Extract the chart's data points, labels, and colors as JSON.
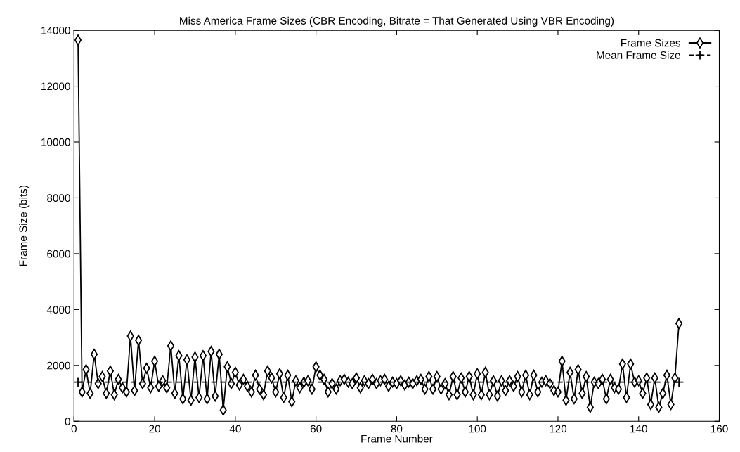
{
  "chart_data": {
    "type": "line",
    "title": "Miss America Frame Sizes (CBR Encoding, Bitrate = That Generated Using VBR Encoding)",
    "xlabel": "Frame Number",
    "ylabel": "Frame Size (bits)",
    "x": [
      1,
      2,
      3,
      4,
      5,
      6,
      7,
      8,
      9,
      10,
      11,
      12,
      13,
      14,
      15,
      16,
      17,
      18,
      19,
      20,
      21,
      22,
      23,
      24,
      25,
      26,
      27,
      28,
      29,
      30,
      31,
      32,
      33,
      34,
      35,
      36,
      37,
      38,
      39,
      40,
      41,
      42,
      43,
      44,
      45,
      46,
      47,
      48,
      49,
      50,
      51,
      52,
      53,
      54,
      55,
      56,
      57,
      58,
      59,
      60,
      61,
      62,
      63,
      64,
      65,
      66,
      67,
      68,
      69,
      70,
      71,
      72,
      73,
      74,
      75,
      76,
      77,
      78,
      79,
      80,
      81,
      82,
      83,
      84,
      85,
      86,
      87,
      88,
      89,
      90,
      91,
      92,
      93,
      94,
      95,
      96,
      97,
      98,
      99,
      100,
      101,
      102,
      103,
      104,
      105,
      106,
      107,
      108,
      109,
      110,
      111,
      112,
      113,
      114,
      115,
      116,
      117,
      118,
      119,
      120,
      121,
      122,
      123,
      124,
      125,
      126,
      127,
      128,
      129,
      130,
      131,
      132,
      133,
      134,
      135,
      136,
      137,
      138,
      139,
      140,
      141,
      142,
      143,
      144,
      145,
      146,
      147,
      148,
      149,
      150
    ],
    "series": [
      {
        "name": "Frame Sizes",
        "color": "#000000",
        "marker": "diamond",
        "line_style": "solid",
        "values": [
          13650,
          1050,
          1850,
          1000,
          2400,
          1350,
          1600,
          1000,
          1800,
          950,
          1500,
          1200,
          1050,
          3050,
          1100,
          2900,
          1350,
          1900,
          1200,
          2150,
          1250,
          1450,
          1200,
          2700,
          1000,
          2350,
          800,
          2200,
          750,
          2300,
          850,
          2350,
          800,
          2500,
          900,
          2400,
          400,
          1950,
          1350,
          1750,
          1300,
          1500,
          1250,
          1050,
          1650,
          1150,
          950,
          1800,
          1550,
          1050,
          1700,
          850,
          1650,
          700,
          1450,
          1200,
          1400,
          1450,
          1150,
          1950,
          1650,
          1500,
          1050,
          1350,
          1150,
          1450,
          1500,
          1400,
          1350,
          1550,
          1200,
          1450,
          1350,
          1500,
          1350,
          1450,
          1500,
          1250,
          1400,
          1350,
          1450,
          1300,
          1400,
          1350,
          1450,
          1500,
          1150,
          1600,
          1150,
          1600,
          1150,
          1350,
          950,
          1600,
          950,
          1550,
          1050,
          1600,
          950,
          1700,
          950,
          1750,
          950,
          1450,
          900,
          1450,
          1100,
          1450,
          1250,
          1600,
          1050,
          1650,
          950,
          1650,
          1050,
          1400,
          1450,
          1350,
          1100,
          1050,
          2150,
          750,
          1750,
          800,
          1850,
          1000,
          1600,
          500,
          1400,
          1350,
          1500,
          800,
          1500,
          1200,
          1150,
          2050,
          850,
          2050,
          1400,
          1450,
          1000,
          1550,
          600,
          1550,
          500,
          1000,
          1650,
          600,
          1550,
          3500
        ]
      },
      {
        "name": "Mean Frame Size",
        "color": "#000000",
        "marker": "cross",
        "line_style": "dashed",
        "x": [
          1,
          150
        ],
        "values": [
          1400,
          1400
        ]
      }
    ],
    "xlim": [
      0,
      160
    ],
    "xticks": [
      0,
      20,
      40,
      60,
      80,
      100,
      120,
      140,
      160
    ],
    "ylim": [
      0,
      14000
    ],
    "yticks": [
      0,
      2000,
      4000,
      6000,
      8000,
      10000,
      12000,
      14000
    ],
    "grid": false,
    "legend": "top right"
  }
}
